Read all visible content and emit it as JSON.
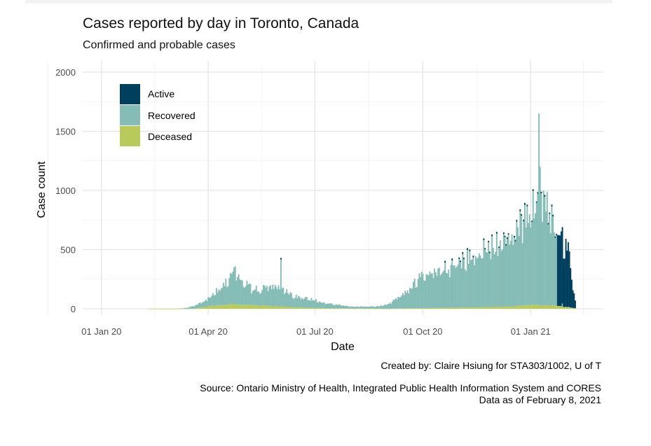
{
  "chart_data": {
    "type": "bar",
    "stacked": true,
    "title": "Cases reported by day in Toronto, Canada",
    "subtitle": "Confirmed and probable cases",
    "xlabel": "Date",
    "ylabel": "Case count",
    "ylim": [
      0,
      2000
    ],
    "yticks": [
      0,
      500,
      1000,
      1500,
      2000
    ],
    "xlim": [
      "2019-12-16",
      "2021-03-04"
    ],
    "xticks": [
      {
        "date": "2020-01-01",
        "label": "01 Jan 20"
      },
      {
        "date": "2020-04-01",
        "label": "01 Apr 20"
      },
      {
        "date": "2020-07-01",
        "label": "01 Jul 20"
      },
      {
        "date": "2020-10-01",
        "label": "01 Oct 20"
      },
      {
        "date": "2021-01-01",
        "label": "01 Jan 21"
      }
    ],
    "grid": true,
    "legend_position": "top-left",
    "series": [
      {
        "name": "Active",
        "color": "#00405f"
      },
      {
        "name": "Recovered",
        "color": "#86bcb6"
      },
      {
        "name": "Deceased",
        "color": "#b9ca5d"
      }
    ],
    "date_range": [
      "2020-01-21",
      "2021-02-08"
    ],
    "totals_keypoints": [
      [
        "2020-01-21",
        0
      ],
      [
        "2020-02-25",
        1
      ],
      [
        "2020-03-05",
        1
      ],
      [
        "2020-03-10",
        4
      ],
      [
        "2020-03-15",
        10
      ],
      [
        "2020-03-20",
        25
      ],
      [
        "2020-03-25",
        45
      ],
      [
        "2020-03-31",
        75
      ],
      [
        "2020-04-05",
        120
      ],
      [
        "2020-04-10",
        170
      ],
      [
        "2020-04-15",
        230
      ],
      [
        "2020-04-20",
        280
      ],
      [
        "2020-04-24",
        320
      ],
      [
        "2020-04-28",
        260
      ],
      [
        "2020-05-03",
        220
      ],
      [
        "2020-05-09",
        170
      ],
      [
        "2020-05-16",
        165
      ],
      [
        "2020-05-23",
        190
      ],
      [
        "2020-05-30",
        200
      ],
      [
        "2020-06-03",
        180
      ],
      [
        "2020-06-10",
        130
      ],
      [
        "2020-06-17",
        100
      ],
      [
        "2020-06-24",
        85
      ],
      [
        "2020-07-01",
        75
      ],
      [
        "2020-07-10",
        50
      ],
      [
        "2020-07-20",
        35
      ],
      [
        "2020-08-01",
        20
      ],
      [
        "2020-08-15",
        18
      ],
      [
        "2020-08-25",
        22
      ],
      [
        "2020-09-01",
        40
      ],
      [
        "2020-09-10",
        90
      ],
      [
        "2020-09-20",
        180
      ],
      [
        "2020-09-28",
        260
      ],
      [
        "2020-10-05",
        300
      ],
      [
        "2020-10-15",
        330
      ],
      [
        "2020-10-25",
        360
      ],
      [
        "2020-11-05",
        420
      ],
      [
        "2020-11-15",
        480
      ],
      [
        "2020-11-25",
        520
      ],
      [
        "2020-12-05",
        580
      ],
      [
        "2020-12-15",
        640
      ],
      [
        "2020-12-22",
        700
      ],
      [
        "2020-12-28",
        780
      ],
      [
        "2021-01-02",
        850
      ],
      [
        "2021-01-06",
        900
      ],
      [
        "2021-01-09",
        950
      ],
      [
        "2021-01-12",
        850
      ],
      [
        "2021-01-16",
        820
      ],
      [
        "2021-01-20",
        720
      ],
      [
        "2021-01-24",
        640
      ],
      [
        "2021-01-28",
        600
      ],
      [
        "2021-02-01",
        520
      ],
      [
        "2021-02-03",
        420
      ],
      [
        "2021-02-05",
        250
      ],
      [
        "2021-02-07",
        120
      ],
      [
        "2021-02-08",
        60
      ]
    ],
    "spikes": [
      {
        "date": "2020-04-24",
        "value": 360
      },
      {
        "date": "2020-06-02",
        "value": 430
      },
      {
        "date": "2020-12-29",
        "value": 880
      },
      {
        "date": "2021-01-03",
        "value": 1010
      },
      {
        "date": "2021-01-08",
        "value": 1650
      },
      {
        "date": "2021-01-09",
        "value": 1200
      },
      {
        "date": "2021-01-12",
        "value": 1000
      },
      {
        "date": "2021-01-15",
        "value": 990
      },
      {
        "date": "2021-01-19",
        "value": 880
      }
    ],
    "active_tail": [
      [
        "2021-01-24",
        650
      ],
      [
        "2021-01-26",
        640
      ],
      [
        "2021-01-28",
        620
      ],
      [
        "2021-01-30",
        600
      ],
      [
        "2021-02-01",
        560
      ],
      [
        "2021-02-03",
        480
      ],
      [
        "2021-02-05",
        400
      ],
      [
        "2021-02-06",
        300
      ],
      [
        "2021-02-07",
        180
      ],
      [
        "2021-02-08",
        120
      ]
    ],
    "deceased_keypoints": [
      [
        "2020-03-20",
        2
      ],
      [
        "2020-04-05",
        25
      ],
      [
        "2020-04-20",
        40
      ],
      [
        "2020-05-10",
        30
      ],
      [
        "2020-06-01",
        20
      ],
      [
        "2020-06-20",
        10
      ],
      [
        "2020-07-15",
        5
      ],
      [
        "2020-09-01",
        2
      ],
      [
        "2020-10-15",
        8
      ],
      [
        "2020-11-15",
        12
      ],
      [
        "2020-12-15",
        20
      ],
      [
        "2021-01-05",
        35
      ],
      [
        "2021-01-25",
        25
      ],
      [
        "2021-02-08",
        5
      ]
    ]
  },
  "caption": {
    "created_by": "Created by: Claire Hsiung for STA303/1002, U of T",
    "source": "Source: Ontario Ministry of Health, Integrated Public Health Information System and CORES",
    "data_as_of": "Data as of February 8, 2021"
  }
}
